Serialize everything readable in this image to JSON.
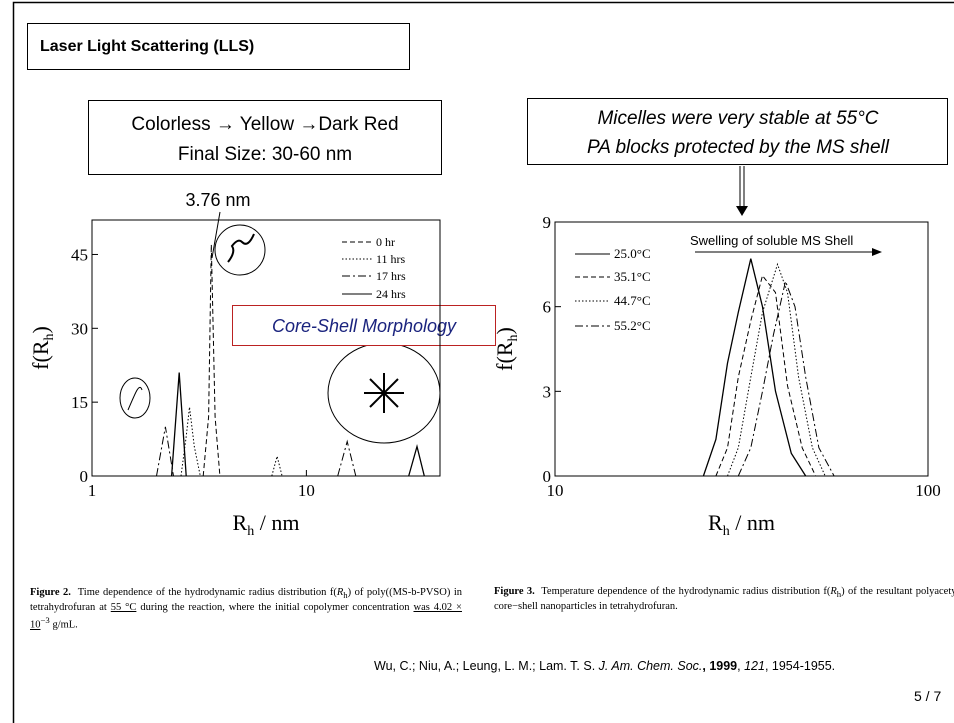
{
  "slide": {
    "title": "Laser Light Scattering (LLS)",
    "left_box": [
      "Colorless → Yellow →Dark Red",
      "Final Size: 30-60 nm"
    ],
    "right_box": [
      "Micelles were very stable at 55°C",
      "PA blocks protected by the MS shell"
    ],
    "captions": [
      {
        "label": "Figure 2.",
        "text": [
          "Time dependence of the hydrodynamic radius distribution f(",
          "R",
          "h",
          ") of poly((MS-b-PVSO) in tetrahydrofuran at ",
          "55 °C",
          " during the reaction, where the initial copolymer concentration ",
          "was 4.02 × 10",
          "−3",
          " g/mL."
        ]
      },
      {
        "label": "Figure 3.",
        "text": [
          "Temperature dependence of the hydrodynamic radius distribution f(",
          "R",
          "h",
          ") of the resultant polyacetylene core−shell nanoparticles in tetrahydrofuran."
        ]
      }
    ],
    "citation": [
      "Wu, C.; Niu, A.; Leung, L. M.; Lam. T. S. ",
      "J. Am. Chem. Soc.",
      ", 1999",
      ", ",
      "121",
      ", 1954-1955."
    ],
    "page": "5 / 7"
  },
  "chart_data": [
    {
      "type": "line",
      "x_label": [
        "R",
        "h",
        " / nm"
      ],
      "y_label": [
        "f(R",
        "h",
        ")"
      ],
      "xlim": [
        1,
        42
      ],
      "ylim": [
        0,
        52
      ],
      "xticks": [
        1,
        10
      ],
      "yticks": [
        0,
        15,
        30,
        45
      ],
      "log_x": true,
      "annotations": [
        "3.76 nm",
        "Core-Shell Morphology"
      ],
      "series": [
        {
          "name": "0 hr",
          "color": "#000000",
          "dash": "dashed",
          "x": [
            3.3,
            3.5,
            3.6,
            3.75,
            3.95
          ],
          "values": [
            0,
            12,
            47,
            12,
            0
          ]
        },
        {
          "name": "11 hrs",
          "color": "#000000",
          "dash": "dotted",
          "x": [
            2.6,
            2.75,
            2.85,
            3.0,
            3.2,
            null,
            6.9,
            7.3,
            7.7
          ],
          "values": [
            0,
            8,
            14,
            6,
            0,
            null,
            0,
            4,
            0
          ]
        },
        {
          "name": "17 hrs",
          "color": "#000000",
          "dash": "dashdot",
          "x": [
            2.0,
            2.2,
            2.4,
            null,
            14,
            15.5,
            17
          ],
          "values": [
            0,
            10,
            0,
            null,
            0,
            7,
            0
          ]
        },
        {
          "name": "24 hrs",
          "color": "#000000",
          "dash": "solid",
          "x": [
            2.35,
            2.55,
            2.75,
            null,
            30,
            32.8,
            35.5
          ],
          "values": [
            0,
            21,
            0,
            null,
            0,
            6,
            0
          ]
        }
      ]
    },
    {
      "type": "line",
      "x_label": [
        "R",
        "h",
        " / nm"
      ],
      "y_label": [
        "f(R",
        "h",
        ")"
      ],
      "xlim": [
        10,
        100
      ],
      "ylim": [
        0,
        9
      ],
      "xticks": [
        10,
        100
      ],
      "yticks": [
        0,
        3,
        6,
        9
      ],
      "log_x": true,
      "annotations": [
        "Swelling of soluble MS Shell"
      ],
      "series": [
        {
          "name": "25.0°C",
          "color": "#000000",
          "dash": "solid",
          "x": [
            25,
            27,
            29,
            31,
            33.5,
            36,
            39,
            43,
            47
          ],
          "values": [
            0,
            1.3,
            4,
            5.8,
            7.7,
            6,
            3,
            0.8,
            0
          ]
        },
        {
          "name": "35.1°C",
          "color": "#000000",
          "dash": "dashed",
          "x": [
            27,
            29,
            31,
            33.5,
            36,
            39,
            42,
            46,
            50
          ],
          "values": [
            0,
            1,
            3.5,
            5.5,
            7.1,
            6.5,
            3.2,
            1,
            0
          ]
        },
        {
          "name": "44.7°C",
          "color": "#000000",
          "dash": "dotted",
          "x": [
            29,
            31,
            33.5,
            36,
            39.5,
            42,
            45,
            49,
            53
          ],
          "values": [
            0,
            1,
            3.5,
            5.8,
            7.5,
            6.5,
            3.5,
            1,
            0
          ]
        },
        {
          "name": "55.2°C",
          "color": "#000000",
          "dash": "dashdot",
          "x": [
            31,
            33.5,
            36,
            38.5,
            41.5,
            44,
            47,
            51,
            56
          ],
          "values": [
            0,
            1,
            3,
            5,
            6.9,
            6,
            3.5,
            1,
            0
          ]
        }
      ]
    }
  ]
}
